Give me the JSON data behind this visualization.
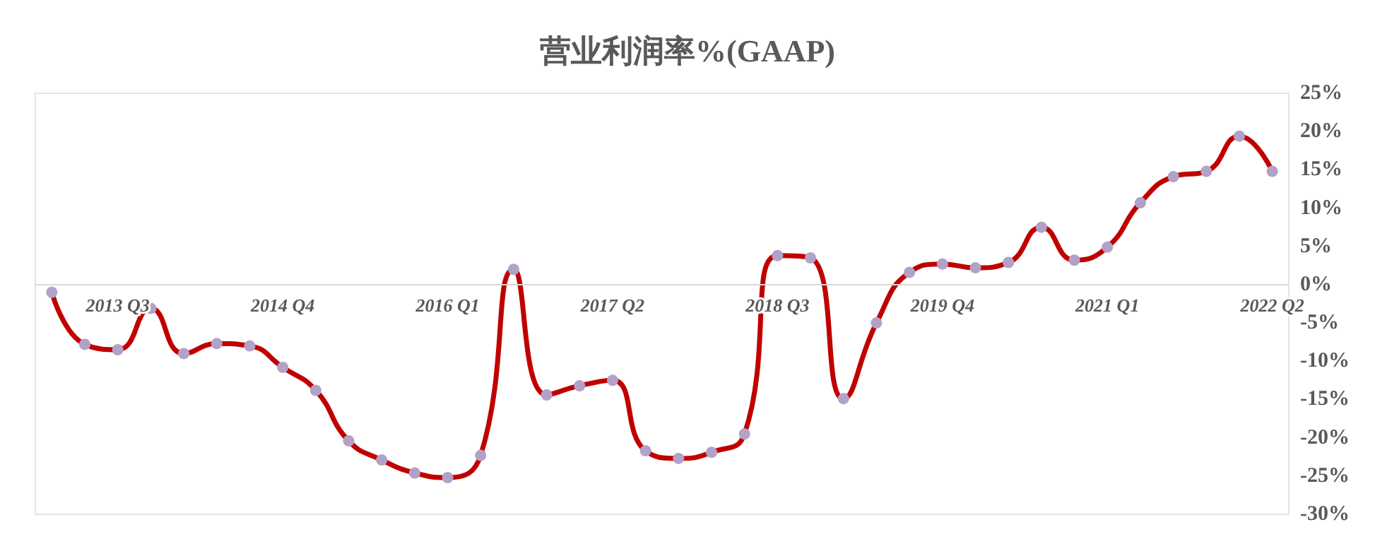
{
  "chart_data": {
    "type": "line",
    "title": "营业利润率%(GAAP)",
    "categories": [
      null,
      null,
      "2013 Q3",
      null,
      null,
      null,
      null,
      "2014 Q4",
      null,
      null,
      null,
      null,
      "2016 Q1",
      null,
      null,
      null,
      null,
      "2017 Q2",
      null,
      null,
      null,
      null,
      "2018 Q3",
      null,
      null,
      null,
      null,
      "2019 Q4",
      null,
      null,
      null,
      null,
      "2021 Q1",
      null,
      null,
      null,
      null,
      "2022 Q2"
    ],
    "series": [
      {
        "color": "#c00000",
        "values": [
          -1.0,
          -7.8,
          -8.5,
          -3.1,
          -9.0,
          -7.7,
          -8.0,
          -10.8,
          -13.8,
          -20.4,
          -22.9,
          -24.6,
          -25.2,
          -22.3,
          2.0,
          -14.4,
          -13.2,
          -12.5,
          -21.7,
          -22.7,
          -21.9,
          -19.5,
          3.8,
          3.5,
          -14.9,
          -5.0,
          1.6,
          2.7,
          2.2,
          2.9,
          7.5,
          3.2,
          4.9,
          10.7,
          14.1,
          14.8,
          19.4,
          14.8
        ]
      }
    ],
    "ylim": [
      -30,
      25
    ],
    "yticks": [
      {
        "value": -30,
        "label": "-30%"
      },
      {
        "value": -25,
        "label": "-25%"
      },
      {
        "value": -20,
        "label": "-20%"
      },
      {
        "value": -15,
        "label": "-15%"
      },
      {
        "value": -10,
        "label": "-10%"
      },
      {
        "value": -5,
        "label": "-5%"
      },
      {
        "value": 0,
        "label": "0%"
      },
      {
        "value": 5,
        "label": "5%"
      },
      {
        "value": 10,
        "label": "10%"
      },
      {
        "value": 15,
        "label": "15%"
      },
      {
        "value": 20,
        "label": "20%"
      },
      {
        "value": 25,
        "label": "25%"
      }
    ],
    "grid": false,
    "marker": "circle",
    "line_style": "solid"
  }
}
